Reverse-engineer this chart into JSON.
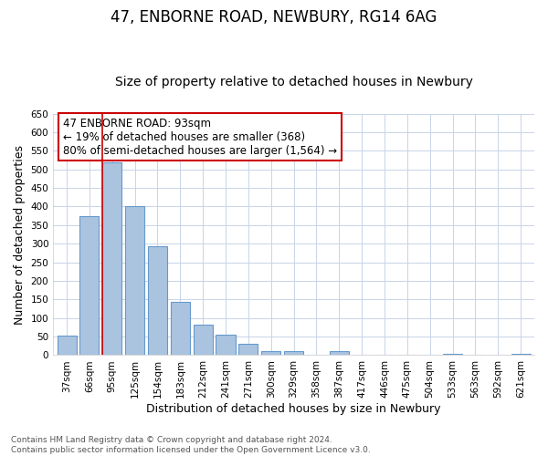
{
  "title": "47, ENBORNE ROAD, NEWBURY, RG14 6AG",
  "subtitle": "Size of property relative to detached houses in Newbury",
  "xlabel": "Distribution of detached houses by size in Newbury",
  "ylabel": "Number of detached properties",
  "categories": [
    "37sqm",
    "66sqm",
    "95sqm",
    "125sqm",
    "154sqm",
    "183sqm",
    "212sqm",
    "241sqm",
    "271sqm",
    "300sqm",
    "329sqm",
    "358sqm",
    "387sqm",
    "417sqm",
    "446sqm",
    "475sqm",
    "504sqm",
    "533sqm",
    "563sqm",
    "592sqm",
    "621sqm"
  ],
  "values": [
    52,
    375,
    519,
    400,
    293,
    143,
    82,
    55,
    30,
    10,
    10,
    0,
    10,
    0,
    0,
    0,
    0,
    4,
    0,
    0,
    3
  ],
  "bar_color": "#aac4e0",
  "bar_edge_color": "#6699cc",
  "highlight_bar_index": 2,
  "highlight_line_color": "#cc0000",
  "annotation_text": "47 ENBORNE ROAD: 93sqm\n← 19% of detached houses are smaller (368)\n80% of semi-detached houses are larger (1,564) →",
  "annotation_box_color": "#ffffff",
  "annotation_box_edgecolor": "#cc0000",
  "ylim": [
    0,
    650
  ],
  "yticks": [
    0,
    50,
    100,
    150,
    200,
    250,
    300,
    350,
    400,
    450,
    500,
    550,
    600,
    650
  ],
  "footer_line1": "Contains HM Land Registry data © Crown copyright and database right 2024.",
  "footer_line2": "Contains public sector information licensed under the Open Government Licence v3.0.",
  "bg_color": "#ffffff",
  "grid_color": "#c8d4e8",
  "title_fontsize": 12,
  "subtitle_fontsize": 10,
  "axis_label_fontsize": 9,
  "tick_fontsize": 7.5,
  "annotation_fontsize": 8.5,
  "footer_fontsize": 6.5
}
